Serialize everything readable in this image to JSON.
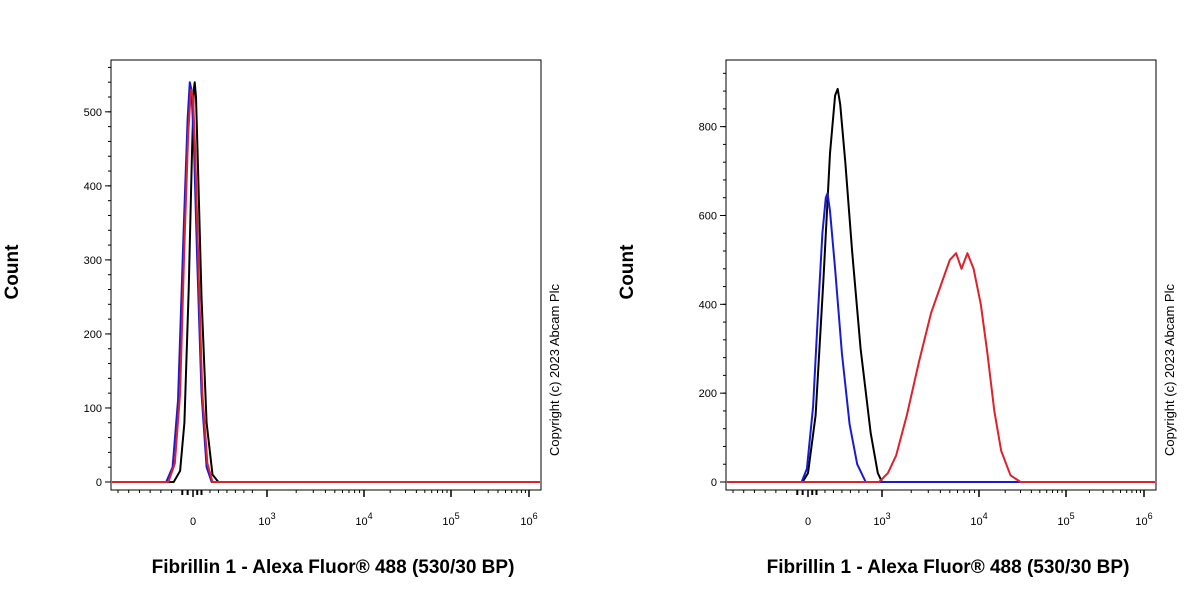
{
  "chart_data": [
    {
      "type": "line",
      "panel": "left",
      "ylabel": "Count",
      "xlabel": "Fibrillin 1 - Alexa Fluor® 488 (530/30 BP)",
      "copyright": "Copyright (c) 2023 Abcam Plc",
      "x_scale": "biexponential",
      "y_ticks": [
        "0",
        "100",
        "200",
        "300",
        "400",
        "500"
      ],
      "y_tick_values": [
        0,
        100,
        200,
        300,
        400,
        500
      ],
      "ylim": [
        0,
        570
      ],
      "x_ticks": [
        {
          "value": 0,
          "base": "0",
          "exp": ""
        },
        {
          "value": 1000,
          "base": "10",
          "exp": "3"
        },
        {
          "value": 10000,
          "base": "10",
          "exp": "4"
        },
        {
          "value": 100000,
          "base": "10",
          "exp": "5"
        },
        {
          "value": 1000000,
          "base": "10",
          "exp": "6"
        }
      ],
      "series": [
        {
          "color": "#000000",
          "points": [
            [
              -180,
              0
            ],
            [
              -120,
              15
            ],
            [
              -80,
              80
            ],
            [
              -40,
              260
            ],
            [
              -10,
              440
            ],
            [
              10,
              530
            ],
            [
              20,
              540
            ],
            [
              35,
              520
            ],
            [
              60,
              420
            ],
            [
              100,
              250
            ],
            [
              160,
              80
            ],
            [
              230,
              10
            ],
            [
              300,
              0
            ]
          ]
        },
        {
          "color": "#1a1ad6",
          "points": [
            [
              -250,
              0
            ],
            [
              -190,
              20
            ],
            [
              -140,
              110
            ],
            [
              -90,
              330
            ],
            [
              -50,
              490
            ],
            [
              -30,
              540
            ],
            [
              -15,
              530
            ],
            [
              10,
              460
            ],
            [
              50,
              300
            ],
            [
              100,
              120
            ],
            [
              160,
              20
            ],
            [
              220,
              0
            ]
          ]
        },
        {
          "color": "#e0202a",
          "points": [
            [
              -230,
              0
            ],
            [
              -170,
              25
            ],
            [
              -120,
              120
            ],
            [
              -80,
              320
            ],
            [
              -45,
              470
            ],
            [
              -20,
              530
            ],
            [
              0,
              520
            ],
            [
              25,
              450
            ],
            [
              65,
              290
            ],
            [
              110,
              120
            ],
            [
              170,
              25
            ],
            [
              230,
              0
            ]
          ]
        }
      ]
    },
    {
      "type": "line",
      "panel": "right",
      "ylabel": "Count",
      "xlabel": "Fibrillin 1 - Alexa Fluor® 488 (530/30 BP)",
      "copyright": "Copyright (c) 2023 Abcam Plc",
      "x_scale": "biexponential",
      "y_ticks": [
        "0",
        "200",
        "400",
        "600",
        "800"
      ],
      "y_tick_values": [
        0,
        200,
        400,
        600,
        800
      ],
      "ylim": [
        0,
        950
      ],
      "x_ticks": [
        {
          "value": 0,
          "base": "0",
          "exp": ""
        },
        {
          "value": 1000,
          "base": "10",
          "exp": "3"
        },
        {
          "value": 10000,
          "base": "10",
          "exp": "4"
        },
        {
          "value": 100000,
          "base": "10",
          "exp": "5"
        },
        {
          "value": 1000000,
          "base": "10",
          "exp": "6"
        }
      ],
      "series": [
        {
          "color": "#000000",
          "points": [
            [
              -50,
              0
            ],
            [
              0,
              20
            ],
            [
              90,
              150
            ],
            [
              180,
              450
            ],
            [
              260,
              740
            ],
            [
              320,
              870
            ],
            [
              350,
              885
            ],
            [
              380,
              850
            ],
            [
              440,
              720
            ],
            [
              520,
              520
            ],
            [
              620,
              300
            ],
            [
              740,
              110
            ],
            [
              860,
              20
            ],
            [
              1000,
              0
            ]
          ]
        },
        {
          "color": "#1a1ad6",
          "points": [
            [
              -60,
              0
            ],
            [
              -10,
              30
            ],
            [
              60,
              170
            ],
            [
              120,
              390
            ],
            [
              170,
              560
            ],
            [
              210,
              640
            ],
            [
              230,
              650
            ],
            [
              260,
              610
            ],
            [
              320,
              480
            ],
            [
              400,
              290
            ],
            [
              490,
              130
            ],
            [
              580,
              40
            ],
            [
              680,
              0
            ]
          ]
        },
        {
          "color": "#e0202a",
          "points": [
            [
              900,
              0
            ],
            [
              1150,
              20
            ],
            [
              1400,
              60
            ],
            [
              1800,
              150
            ],
            [
              2400,
              270
            ],
            [
              3200,
              380
            ],
            [
              4000,
              440
            ],
            [
              5000,
              500
            ],
            [
              5800,
              515
            ],
            [
              6600,
              480
            ],
            [
              7600,
              515
            ],
            [
              8800,
              480
            ],
            [
              10500,
              400
            ],
            [
              12500,
              290
            ],
            [
              15000,
              160
            ],
            [
              18000,
              70
            ],
            [
              23000,
              15
            ],
            [
              30000,
              0
            ]
          ]
        }
      ]
    }
  ]
}
